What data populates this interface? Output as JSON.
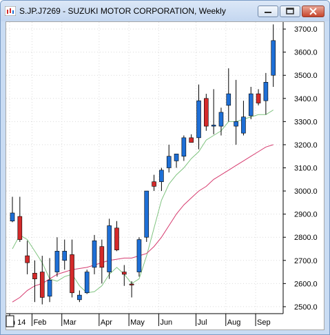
{
  "window": {
    "title": "S.JP.J7269 - SUZUKI MOTOR CORPORATION, Weekly",
    "accent": "#c9dcf3",
    "buttons": [
      "minimize-icon",
      "maximize-icon",
      "close-icon"
    ]
  },
  "chart_data": {
    "type": "candlestick",
    "title": "S.JP.J7269 - SUZUKI MOTOR CORPORATION, Weekly",
    "xlabel": "",
    "ylabel": "",
    "ylim": [
      2470,
      3730
    ],
    "y_ticks": [
      "2500.0",
      "2600.0",
      "2700.0",
      "2800.0",
      "2900.0",
      "3000.0",
      "3100.0",
      "3200.0",
      "3300.0",
      "3400.0",
      "3500.0",
      "3600.0",
      "3700.0"
    ],
    "y_tick_values": [
      2500,
      2600,
      2700,
      2800,
      2900,
      3000,
      3100,
      3200,
      3300,
      3400,
      3500,
      3600,
      3700
    ],
    "x_labels": [
      {
        "label": "n 14",
        "index": 0
      },
      {
        "label": "Feb",
        "index": 3
      },
      {
        "label": "Mar",
        "index": 7
      },
      {
        "label": "Apr",
        "index": 12
      },
      {
        "label": "May",
        "index": 16
      },
      {
        "label": "Jun",
        "index": 20
      },
      {
        "label": "Jul",
        "index": 25
      },
      {
        "label": "Aug",
        "index": 29
      },
      {
        "label": "Sep",
        "index": 33
      }
    ],
    "grid": true,
    "colors": {
      "up": "#1e6fd6",
      "down": "#d42a2a",
      "ma_short": "#7fc37f",
      "ma_long": "#d63a6e",
      "grid": "#d9d9d9"
    },
    "candles": [
      {
        "o": 2870,
        "h": 2975,
        "l": 2865,
        "c": 2905
      },
      {
        "o": 2890,
        "h": 2975,
        "l": 2780,
        "c": 2790
      },
      {
        "o": 2720,
        "h": 2785,
        "l": 2640,
        "c": 2690
      },
      {
        "o": 2645,
        "h": 2700,
        "l": 2520,
        "c": 2620
      },
      {
        "o": 2650,
        "h": 2720,
        "l": 2510,
        "c": 2540
      },
      {
        "o": 2545,
        "h": 2710,
        "l": 2520,
        "c": 2615
      },
      {
        "o": 2650,
        "h": 2800,
        "l": 2630,
        "c": 2740
      },
      {
        "o": 2700,
        "h": 2790,
        "l": 2660,
        "c": 2740
      },
      {
        "o": 2725,
        "h": 2790,
        "l": 2540,
        "c": 2560
      },
      {
        "o": 2530,
        "h": 2570,
        "l": 2520,
        "c": 2550
      },
      {
        "o": 2560,
        "h": 2660,
        "l": 2555,
        "c": 2650
      },
      {
        "o": 2670,
        "h": 2810,
        "l": 2640,
        "c": 2785
      },
      {
        "o": 2760,
        "h": 2790,
        "l": 2600,
        "c": 2670
      },
      {
        "o": 2650,
        "h": 2880,
        "l": 2620,
        "c": 2850
      },
      {
        "o": 2840,
        "h": 2870,
        "l": 2740,
        "c": 2745
      },
      {
        "o": 2650,
        "h": 2680,
        "l": 2590,
        "c": 2640
      },
      {
        "o": 2598,
        "h": 2610,
        "l": 2540,
        "c": 2596
      },
      {
        "o": 2650,
        "h": 2800,
        "l": 2630,
        "c": 2790
      },
      {
        "o": 2800,
        "h": 3000,
        "l": 2780,
        "c": 3000
      },
      {
        "o": 3040,
        "h": 3070,
        "l": 3000,
        "c": 3020
      },
      {
        "o": 3040,
        "h": 3100,
        "l": 3000,
        "c": 3090
      },
      {
        "o": 3100,
        "h": 3200,
        "l": 3080,
        "c": 3150
      },
      {
        "o": 3130,
        "h": 3160,
        "l": 3100,
        "c": 3160
      },
      {
        "o": 3150,
        "h": 3240,
        "l": 3130,
        "c": 3230
      },
      {
        "o": 3230,
        "h": 3245,
        "l": 3210,
        "c": 3210
      },
      {
        "o": 3230,
        "h": 3460,
        "l": 3180,
        "c": 3390
      },
      {
        "o": 3400,
        "h": 3420,
        "l": 3260,
        "c": 3280
      },
      {
        "o": 3280,
        "h": 3440,
        "l": 3245,
        "c": 3285
      },
      {
        "o": 3280,
        "h": 3360,
        "l": 3240,
        "c": 3340
      },
      {
        "o": 3370,
        "h": 3530,
        "l": 3300,
        "c": 3420
      },
      {
        "o": 3280,
        "h": 3480,
        "l": 3200,
        "c": 3300
      },
      {
        "o": 3250,
        "h": 3390,
        "l": 3240,
        "c": 3320
      },
      {
        "o": 3325,
        "h": 3450,
        "l": 3310,
        "c": 3420
      },
      {
        "o": 3420,
        "h": 3440,
        "l": 3370,
        "c": 3380
      },
      {
        "o": 3390,
        "h": 3510,
        "l": 3330,
        "c": 3470
      },
      {
        "o": 3500,
        "h": 3720,
        "l": 3450,
        "c": 3650
      }
    ],
    "series": [
      {
        "values": [
          2750,
          2810,
          2790,
          2740,
          2690,
          2620,
          2610,
          2630,
          2640,
          2590,
          2560,
          2565,
          2590,
          2640,
          2670,
          2640,
          2600,
          2620,
          2720,
          2840,
          2960,
          3030,
          3070,
          3100,
          3140,
          3170,
          3220,
          3240,
          3260,
          3300,
          3300,
          3310,
          3320,
          3330,
          3330,
          3350
        ]
      },
      {
        "values": [
          2520,
          2540,
          2570,
          2590,
          2600,
          2620,
          2640,
          2650,
          2660,
          2665,
          2670,
          2680,
          2690,
          2700,
          2705,
          2710,
          2710,
          2720,
          2730,
          2760,
          2800,
          2850,
          2900,
          2940,
          2970,
          3000,
          3020,
          3050,
          3070,
          3090,
          3110,
          3130,
          3150,
          3170,
          3190,
          3200
        ]
      }
    ]
  }
}
